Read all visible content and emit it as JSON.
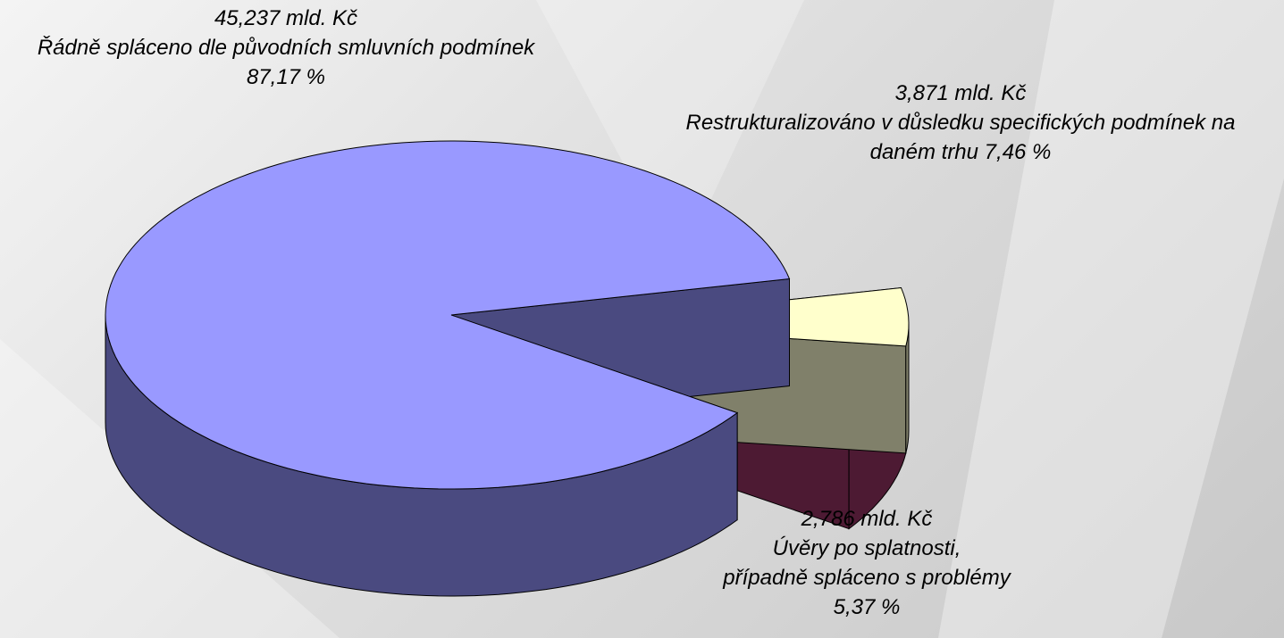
{
  "chart_data": {
    "type": "pie",
    "categories": [
      "Řádně spláceno dle původních smluvních podmínek",
      "Restrukturalizováno v důsledku specifických podmínek na daném trhu",
      "Úvěry po splatnosti,\npřípadně spláceno s problémy"
    ],
    "values": [
      87.17,
      7.46,
      5.37
    ],
    "value_labels": [
      "87,17 %",
      "7,46 %",
      "5,37 %"
    ],
    "amounts": [
      45.237,
      3.871,
      2.786
    ],
    "amount_labels": [
      "45,237 mld. Kč",
      "3,871 mld. Kč",
      "2,786 mld. Kč"
    ],
    "colors": [
      "#9999ff",
      "#993366",
      "#ffffcc"
    ],
    "side_colors": [
      "#4a4a80",
      "#4d1a33",
      "#80806a"
    ]
  }
}
